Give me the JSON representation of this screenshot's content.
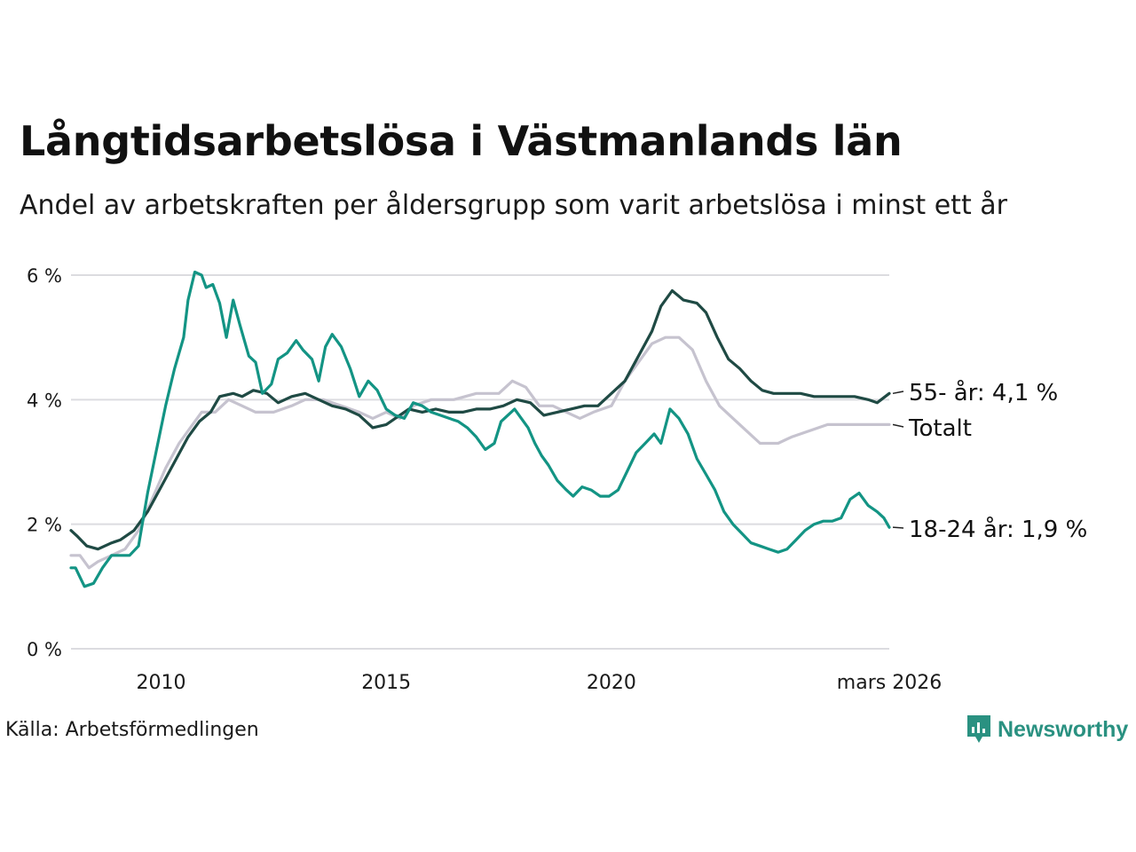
{
  "title": "Långtidsarbetslösa i Västmanlands län",
  "subtitle": "Andel av arbetskraften per åldersgrupp som varit arbetslösa i minst ett år",
  "source": "Källa: Arbetsförmedlingen",
  "brand": "Newsworthy",
  "colors": {
    "young": "#139484",
    "old": "#1f4a44",
    "total": "#c6c3cf",
    "grid": "#dcdce0",
    "brand": "#2a9181"
  },
  "chart_data": {
    "type": "line",
    "x_range": [
      2008.0,
      2026.17
    ],
    "ylim": [
      0,
      6
    ],
    "y_ticks": [
      {
        "value": 0,
        "label": "0 %"
      },
      {
        "value": 2,
        "label": "2 %"
      },
      {
        "value": 4,
        "label": "4 %"
      },
      {
        "value": 6,
        "label": "6 %"
      }
    ],
    "x_ticks": [
      {
        "value": 2010,
        "label": "2010"
      },
      {
        "value": 2015,
        "label": "2015"
      },
      {
        "value": 2020,
        "label": "2020"
      },
      {
        "value": 2026.17,
        "label": "mars 2026"
      }
    ],
    "series": [
      {
        "name": "Totalt",
        "color_key": "total",
        "end_label": "Totalt",
        "points": [
          [
            2008.0,
            1.5
          ],
          [
            2008.2,
            1.5
          ],
          [
            2008.4,
            1.3
          ],
          [
            2008.6,
            1.4
          ],
          [
            2008.9,
            1.5
          ],
          [
            2009.2,
            1.6
          ],
          [
            2009.5,
            1.9
          ],
          [
            2009.8,
            2.4
          ],
          [
            2010.1,
            2.9
          ],
          [
            2010.4,
            3.3
          ],
          [
            2010.7,
            3.6
          ],
          [
            2010.9,
            3.8
          ],
          [
            2011.2,
            3.8
          ],
          [
            2011.5,
            4.0
          ],
          [
            2011.8,
            3.9
          ],
          [
            2012.1,
            3.8
          ],
          [
            2012.5,
            3.8
          ],
          [
            2012.9,
            3.9
          ],
          [
            2013.2,
            4.0
          ],
          [
            2013.6,
            4.0
          ],
          [
            2014.0,
            3.9
          ],
          [
            2014.4,
            3.8
          ],
          [
            2014.7,
            3.7
          ],
          [
            2015.0,
            3.8
          ],
          [
            2015.3,
            3.7
          ],
          [
            2015.6,
            3.9
          ],
          [
            2016.0,
            4.0
          ],
          [
            2016.5,
            4.0
          ],
          [
            2017.0,
            4.1
          ],
          [
            2017.5,
            4.1
          ],
          [
            2017.8,
            4.3
          ],
          [
            2018.1,
            4.2
          ],
          [
            2018.4,
            3.9
          ],
          [
            2018.7,
            3.9
          ],
          [
            2019.0,
            3.8
          ],
          [
            2019.3,
            3.7
          ],
          [
            2019.6,
            3.8
          ],
          [
            2020.0,
            3.9
          ],
          [
            2020.3,
            4.3
          ],
          [
            2020.6,
            4.6
          ],
          [
            2020.9,
            4.9
          ],
          [
            2021.2,
            5.0
          ],
          [
            2021.5,
            5.0
          ],
          [
            2021.8,
            4.8
          ],
          [
            2022.1,
            4.3
          ],
          [
            2022.4,
            3.9
          ],
          [
            2022.7,
            3.7
          ],
          [
            2023.0,
            3.5
          ],
          [
            2023.3,
            3.3
          ],
          [
            2023.7,
            3.3
          ],
          [
            2024.0,
            3.4
          ],
          [
            2024.4,
            3.5
          ],
          [
            2024.8,
            3.6
          ],
          [
            2025.2,
            3.6
          ],
          [
            2025.6,
            3.6
          ],
          [
            2026.17,
            3.6
          ]
        ]
      },
      {
        "name": "55- år",
        "color_key": "old",
        "end_label": "55- år: 4,1 %",
        "points": [
          [
            2008.0,
            1.9
          ],
          [
            2008.15,
            1.8
          ],
          [
            2008.35,
            1.65
          ],
          [
            2008.6,
            1.6
          ],
          [
            2008.9,
            1.7
          ],
          [
            2009.1,
            1.75
          ],
          [
            2009.4,
            1.9
          ],
          [
            2009.7,
            2.2
          ],
          [
            2010.0,
            2.6
          ],
          [
            2010.3,
            3.0
          ],
          [
            2010.6,
            3.4
          ],
          [
            2010.85,
            3.65
          ],
          [
            2011.1,
            3.8
          ],
          [
            2011.3,
            4.05
          ],
          [
            2011.6,
            4.1
          ],
          [
            2011.8,
            4.05
          ],
          [
            2012.05,
            4.15
          ],
          [
            2012.35,
            4.1
          ],
          [
            2012.6,
            3.95
          ],
          [
            2012.9,
            4.05
          ],
          [
            2013.2,
            4.1
          ],
          [
            2013.5,
            4.0
          ],
          [
            2013.8,
            3.9
          ],
          [
            2014.1,
            3.85
          ],
          [
            2014.4,
            3.75
          ],
          [
            2014.7,
            3.55
          ],
          [
            2015.0,
            3.6
          ],
          [
            2015.3,
            3.75
          ],
          [
            2015.5,
            3.85
          ],
          [
            2015.8,
            3.8
          ],
          [
            2016.1,
            3.85
          ],
          [
            2016.4,
            3.8
          ],
          [
            2016.7,
            3.8
          ],
          [
            2017.0,
            3.85
          ],
          [
            2017.3,
            3.85
          ],
          [
            2017.6,
            3.9
          ],
          [
            2017.9,
            4.0
          ],
          [
            2018.2,
            3.95
          ],
          [
            2018.5,
            3.75
          ],
          [
            2018.8,
            3.8
          ],
          [
            2019.1,
            3.85
          ],
          [
            2019.4,
            3.9
          ],
          [
            2019.7,
            3.9
          ],
          [
            2020.0,
            4.1
          ],
          [
            2020.3,
            4.3
          ],
          [
            2020.6,
            4.7
          ],
          [
            2020.9,
            5.1
          ],
          [
            2021.1,
            5.5
          ],
          [
            2021.35,
            5.75
          ],
          [
            2021.6,
            5.6
          ],
          [
            2021.9,
            5.55
          ],
          [
            2022.1,
            5.4
          ],
          [
            2022.35,
            5.0
          ],
          [
            2022.6,
            4.65
          ],
          [
            2022.85,
            4.5
          ],
          [
            2023.1,
            4.3
          ],
          [
            2023.35,
            4.15
          ],
          [
            2023.6,
            4.1
          ],
          [
            2023.9,
            4.1
          ],
          [
            2024.2,
            4.1
          ],
          [
            2024.5,
            4.05
          ],
          [
            2024.8,
            4.05
          ],
          [
            2025.1,
            4.05
          ],
          [
            2025.4,
            4.05
          ],
          [
            2025.7,
            4.0
          ],
          [
            2025.9,
            3.95
          ],
          [
            2026.17,
            4.1
          ]
        ]
      },
      {
        "name": "18-24 år",
        "color_key": "young",
        "end_label": "18-24 år: 1,9 %",
        "points": [
          [
            2008.0,
            1.3
          ],
          [
            2008.1,
            1.3
          ],
          [
            2008.2,
            1.15
          ],
          [
            2008.3,
            1.0
          ],
          [
            2008.5,
            1.05
          ],
          [
            2008.7,
            1.3
          ],
          [
            2008.9,
            1.5
          ],
          [
            2009.1,
            1.5
          ],
          [
            2009.3,
            1.5
          ],
          [
            2009.5,
            1.65
          ],
          [
            2009.7,
            2.5
          ],
          [
            2009.9,
            3.2
          ],
          [
            2010.1,
            3.9
          ],
          [
            2010.3,
            4.5
          ],
          [
            2010.5,
            5.0
          ],
          [
            2010.6,
            5.6
          ],
          [
            2010.75,
            6.05
          ],
          [
            2010.9,
            6.0
          ],
          [
            2011.0,
            5.8
          ],
          [
            2011.15,
            5.85
          ],
          [
            2011.3,
            5.55
          ],
          [
            2011.45,
            5.0
          ],
          [
            2011.6,
            5.6
          ],
          [
            2011.75,
            5.2
          ],
          [
            2011.95,
            4.7
          ],
          [
            2012.1,
            4.6
          ],
          [
            2012.25,
            4.1
          ],
          [
            2012.45,
            4.25
          ],
          [
            2012.6,
            4.65
          ],
          [
            2012.8,
            4.75
          ],
          [
            2013.0,
            4.95
          ],
          [
            2013.15,
            4.8
          ],
          [
            2013.35,
            4.65
          ],
          [
            2013.5,
            4.3
          ],
          [
            2013.65,
            4.85
          ],
          [
            2013.8,
            5.05
          ],
          [
            2014.0,
            4.85
          ],
          [
            2014.2,
            4.5
          ],
          [
            2014.4,
            4.05
          ],
          [
            2014.6,
            4.3
          ],
          [
            2014.8,
            4.15
          ],
          [
            2015.0,
            3.85
          ],
          [
            2015.2,
            3.75
          ],
          [
            2015.4,
            3.7
          ],
          [
            2015.6,
            3.95
          ],
          [
            2015.8,
            3.9
          ],
          [
            2016.0,
            3.8
          ],
          [
            2016.2,
            3.75
          ],
          [
            2016.4,
            3.7
          ],
          [
            2016.6,
            3.65
          ],
          [
            2016.8,
            3.55
          ],
          [
            2017.0,
            3.4
          ],
          [
            2017.2,
            3.2
          ],
          [
            2017.4,
            3.3
          ],
          [
            2017.55,
            3.65
          ],
          [
            2017.7,
            3.75
          ],
          [
            2017.85,
            3.85
          ],
          [
            2018.0,
            3.7
          ],
          [
            2018.15,
            3.55
          ],
          [
            2018.3,
            3.3
          ],
          [
            2018.45,
            3.1
          ],
          [
            2018.6,
            2.95
          ],
          [
            2018.8,
            2.7
          ],
          [
            2019.0,
            2.55
          ],
          [
            2019.15,
            2.45
          ],
          [
            2019.35,
            2.6
          ],
          [
            2019.55,
            2.55
          ],
          [
            2019.75,
            2.45
          ],
          [
            2019.95,
            2.45
          ],
          [
            2020.15,
            2.55
          ],
          [
            2020.35,
            2.85
          ],
          [
            2020.55,
            3.15
          ],
          [
            2020.75,
            3.3
          ],
          [
            2020.95,
            3.45
          ],
          [
            2021.1,
            3.3
          ],
          [
            2021.3,
            3.85
          ],
          [
            2021.5,
            3.7
          ],
          [
            2021.7,
            3.45
          ],
          [
            2021.9,
            3.05
          ],
          [
            2022.1,
            2.8
          ],
          [
            2022.3,
            2.55
          ],
          [
            2022.5,
            2.2
          ],
          [
            2022.7,
            2.0
          ],
          [
            2022.9,
            1.85
          ],
          [
            2023.1,
            1.7
          ],
          [
            2023.3,
            1.65
          ],
          [
            2023.5,
            1.6
          ],
          [
            2023.7,
            1.55
          ],
          [
            2023.9,
            1.6
          ],
          [
            2024.1,
            1.75
          ],
          [
            2024.3,
            1.9
          ],
          [
            2024.5,
            2.0
          ],
          [
            2024.7,
            2.05
          ],
          [
            2024.9,
            2.05
          ],
          [
            2025.1,
            2.1
          ],
          [
            2025.3,
            2.4
          ],
          [
            2025.5,
            2.5
          ],
          [
            2025.7,
            2.3
          ],
          [
            2025.9,
            2.2
          ],
          [
            2026.05,
            2.1
          ],
          [
            2026.17,
            1.95
          ]
        ]
      }
    ]
  }
}
